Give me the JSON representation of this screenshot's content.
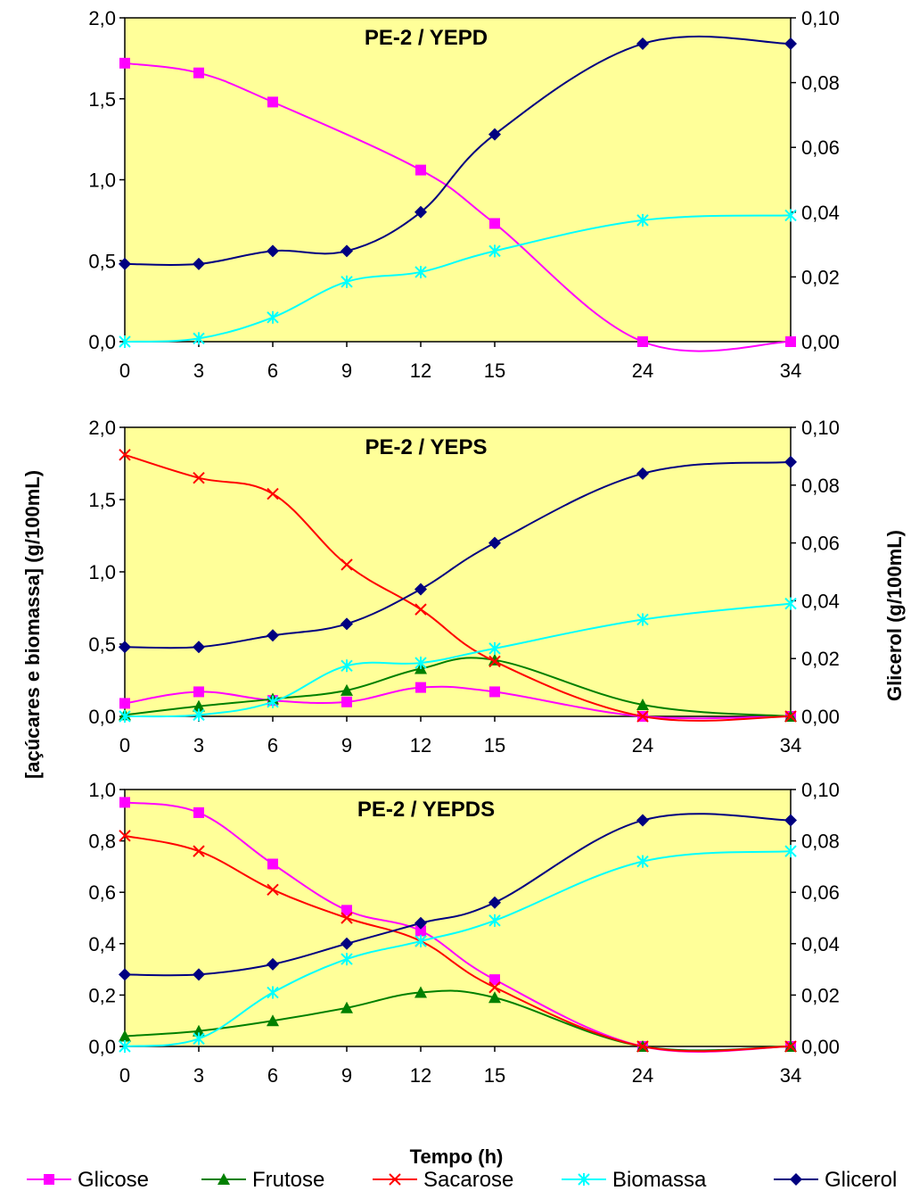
{
  "y_axis_left_label": "[açúcares e biomassa] (g/100mL)",
  "y_axis_right_label": "Glicerol (g/100mL)",
  "x_axis_label": "Tempo (h)",
  "colors": {
    "Glicose": "#ff00ff",
    "Frutose": "#008000",
    "Sacarose": "#ff0000",
    "Biomassa": "#00ffff",
    "Glicerol": "#000080",
    "plot_background": "#ffff99"
  },
  "legend": [
    {
      "name": "Glicose",
      "marker": "square"
    },
    {
      "name": "Frutose",
      "marker": "triangle"
    },
    {
      "name": "Sacarose",
      "marker": "x"
    },
    {
      "name": "Biomassa",
      "marker": "star"
    },
    {
      "name": "Glicerol",
      "marker": "diamond"
    }
  ],
  "chart_data": [
    {
      "type": "line",
      "title": "PE-2 / YEPD",
      "x": [
        "0",
        "3",
        "6",
        "9",
        "12",
        "15",
        "24",
        "34"
      ],
      "ylim_left": [
        0,
        2.0
      ],
      "yticks_left": [
        "0,0",
        "0,5",
        "1,0",
        "1,5",
        "2,0"
      ],
      "ylim_right": [
        0,
        0.1
      ],
      "yticks_right": [
        "0,00",
        "0,02",
        "0,04",
        "0,06",
        "0,08",
        "0,10"
      ],
      "series": [
        {
          "name": "Glicose",
          "axis": "left",
          "values": [
            1.72,
            1.66,
            1.48,
            null,
            1.06,
            0.73,
            0.0,
            0.0
          ]
        },
        {
          "name": "Biomassa",
          "axis": "left",
          "values": [
            0.0,
            0.02,
            0.15,
            0.37,
            0.43,
            0.56,
            0.75,
            0.78
          ]
        },
        {
          "name": "Glicerol",
          "axis": "right",
          "values": [
            0.024,
            0.024,
            0.028,
            0.028,
            0.04,
            0.064,
            0.092,
            0.092
          ]
        }
      ]
    },
    {
      "type": "line",
      "title": "PE-2 / YEPS",
      "x": [
        "0",
        "3",
        "6",
        "9",
        "12",
        "15",
        "24",
        "34"
      ],
      "ylim_left": [
        0,
        2.0
      ],
      "yticks_left": [
        "0,0",
        "0,5",
        "1,0",
        "1,5",
        "2,0"
      ],
      "ylim_right": [
        0,
        0.1
      ],
      "yticks_right": [
        "0,00",
        "0,02",
        "0,04",
        "0,06",
        "0,08",
        "0,10"
      ],
      "series": [
        {
          "name": "Glicose",
          "axis": "left",
          "values": [
            0.09,
            0.17,
            0.11,
            0.1,
            0.2,
            0.17,
            0.0,
            0.0
          ]
        },
        {
          "name": "Frutose",
          "axis": "left",
          "values": [
            0.01,
            0.07,
            0.12,
            0.18,
            0.33,
            0.39,
            0.08,
            0.0
          ]
        },
        {
          "name": "Sacarose",
          "axis": "left",
          "values": [
            1.81,
            1.65,
            1.54,
            1.05,
            0.74,
            0.38,
            0.0,
            0.0
          ]
        },
        {
          "name": "Biomassa",
          "axis": "left",
          "values": [
            0.0,
            0.01,
            0.1,
            0.35,
            0.37,
            0.47,
            0.67,
            0.78
          ]
        },
        {
          "name": "Glicerol",
          "axis": "right",
          "values": [
            0.024,
            0.024,
            0.028,
            0.032,
            0.044,
            0.06,
            0.084,
            0.088
          ]
        }
      ]
    },
    {
      "type": "line",
      "title": "PE-2 / YEPDS",
      "x": [
        "0",
        "3",
        "6",
        "9",
        "12",
        "15",
        "24",
        "34"
      ],
      "ylim_left": [
        0,
        1.0
      ],
      "yticks_left": [
        "0,0",
        "0,2",
        "0,4",
        "0,6",
        "0,8",
        "1,0"
      ],
      "ylim_right": [
        0,
        0.1
      ],
      "yticks_right": [
        "0,00",
        "0,02",
        "0,04",
        "0,06",
        "0,08",
        "0,10"
      ],
      "series": [
        {
          "name": "Glicose",
          "axis": "left",
          "values": [
            0.95,
            0.91,
            0.71,
            0.53,
            0.45,
            0.26,
            0.0,
            0.0
          ]
        },
        {
          "name": "Frutose",
          "axis": "left",
          "values": [
            0.04,
            0.06,
            0.1,
            0.15,
            0.21,
            0.19,
            0.0,
            0.0
          ]
        },
        {
          "name": "Sacarose",
          "axis": "left",
          "values": [
            0.82,
            0.76,
            0.61,
            0.5,
            0.41,
            0.23,
            0.0,
            0.0
          ]
        },
        {
          "name": "Biomassa",
          "axis": "left",
          "values": [
            0.0,
            0.03,
            0.21,
            0.34,
            0.41,
            0.49,
            0.72,
            0.76
          ]
        },
        {
          "name": "Glicerol",
          "axis": "right",
          "values": [
            0.028,
            0.028,
            0.032,
            0.04,
            0.048,
            0.056,
            0.088,
            0.088
          ]
        }
      ]
    }
  ]
}
